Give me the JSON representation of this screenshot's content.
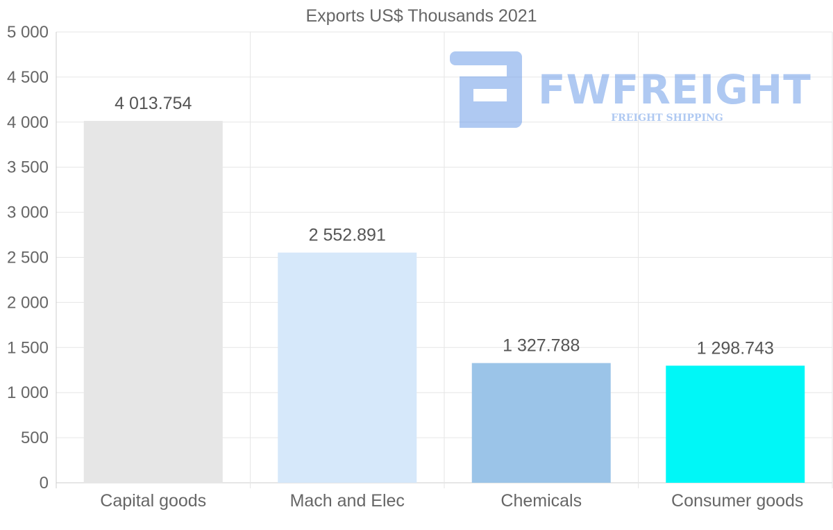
{
  "chart_data": {
    "type": "bar",
    "title": "Exports US$ Thousands 2021",
    "categories": [
      "Capital goods",
      "Mach and Elec",
      "Chemicals",
      "Consumer goods"
    ],
    "values": [
      4013.754,
      2552.891,
      1327.788,
      1298.743
    ],
    "value_labels": [
      "4 013.754",
      "2 552.891",
      "1 327.788",
      "1 298.743"
    ],
    "colors": [
      "#e6e6e6",
      "#d6e8fa",
      "#9bc4e8",
      "#00f7f7"
    ],
    "ylim": [
      0,
      5000
    ],
    "yticks": [
      0,
      500,
      1000,
      1500,
      2000,
      2500,
      3000,
      3500,
      4000,
      4500,
      5000
    ],
    "ytick_labels": [
      "0",
      "500",
      "1 000",
      "1 500",
      "2 000",
      "2 500",
      "3 000",
      "3 500",
      "4 000",
      "4 500",
      "5 000"
    ],
    "xlabel": "",
    "ylabel": "",
    "grid": true,
    "legend": "none"
  },
  "watermark": {
    "brand": "FWFREIGHT",
    "tagline": "FREIGHT SHIPPING",
    "color": "#6f9de8"
  }
}
